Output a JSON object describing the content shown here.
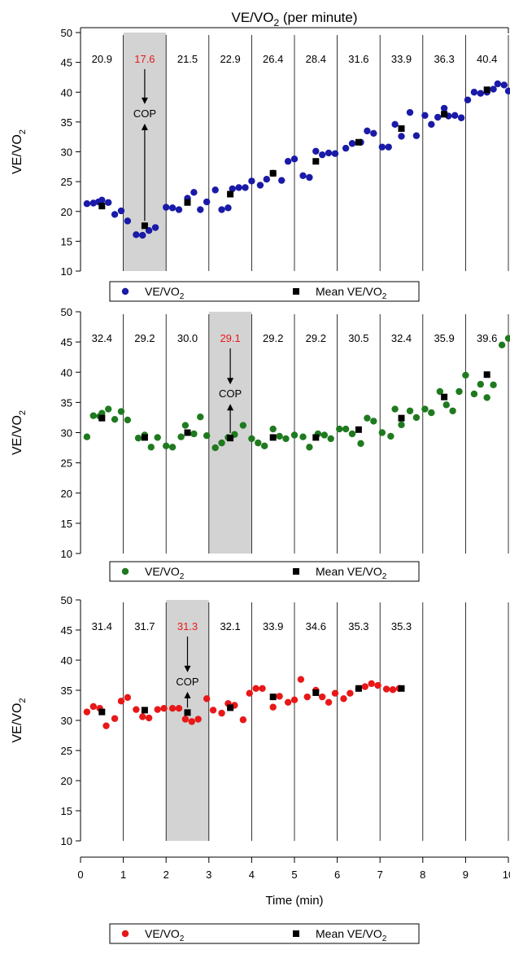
{
  "figure": {
    "title_main": "VE/VO",
    "title_sub": "2",
    "title_suffix": " (per minute)",
    "xlabel": "Time (min)",
    "cop_label": "COP"
  },
  "colors": {
    "blue": "#1a1aa8",
    "green": "#1f7a1f",
    "red": "#e81818",
    "mean": "#000000",
    "highlight": "#d3d3d3",
    "highlight_text": "#e81818"
  },
  "chart_data": [
    {
      "type": "scatter",
      "color": "blue",
      "ylabel_main": "VE/VO",
      "ylabel_sub": "2",
      "ylim": [
        10,
        50
      ],
      "yticks": [
        10,
        15,
        20,
        25,
        30,
        35,
        40,
        45,
        50
      ],
      "xlim": [
        0,
        10
      ],
      "minute_lines": [
        1,
        2,
        3,
        4,
        5,
        6,
        7,
        8,
        9,
        10
      ],
      "highlight_minute": [
        1,
        2
      ],
      "cop_minute": 1.5,
      "minute_means_text": [
        "20.9",
        "17.6",
        "21.5",
        "22.9",
        "26.4",
        "28.4",
        "31.6",
        "33.9",
        "36.3",
        "40.4"
      ],
      "highlight_index": 1,
      "legend": {
        "series": "VE/VO",
        "series_sub": "2",
        "mean": "Mean VE/VO",
        "mean_sub": "2"
      },
      "series": [
        {
          "name": "VE/VO2",
          "points": [
            [
              0.15,
              21.3
            ],
            [
              0.3,
              21.4
            ],
            [
              0.42,
              21.6
            ],
            [
              0.5,
              21.9
            ],
            [
              0.65,
              21.5
            ],
            [
              0.8,
              19.5
            ],
            [
              0.95,
              20.1
            ],
            [
              1.1,
              18.4
            ],
            [
              1.3,
              16.1
            ],
            [
              1.45,
              16.0
            ],
            [
              1.6,
              16.8
            ],
            [
              1.75,
              17.3
            ],
            [
              2.0,
              20.7
            ],
            [
              2.15,
              20.6
            ],
            [
              2.3,
              20.3
            ],
            [
              2.5,
              22.2
            ],
            [
              2.65,
              23.2
            ],
            [
              2.8,
              20.3
            ],
            [
              2.95,
              21.6
            ],
            [
              3.15,
              23.6
            ],
            [
              3.3,
              20.3
            ],
            [
              3.45,
              20.6
            ],
            [
              3.55,
              23.8
            ],
            [
              3.7,
              24.0
            ],
            [
              3.85,
              24.0
            ],
            [
              4.0,
              25.1
            ],
            [
              4.2,
              24.4
            ],
            [
              4.35,
              25.4
            ],
            [
              4.5,
              26.4
            ],
            [
              4.7,
              25.2
            ],
            [
              4.85,
              28.4
            ],
            [
              5.0,
              28.8
            ],
            [
              5.2,
              26.0
            ],
            [
              5.35,
              25.7
            ],
            [
              5.5,
              30.1
            ],
            [
              5.65,
              29.5
            ],
            [
              5.8,
              29.8
            ],
            [
              5.95,
              29.7
            ],
            [
              6.2,
              30.6
            ],
            [
              6.35,
              31.4
            ],
            [
              6.55,
              31.6
            ],
            [
              6.7,
              33.5
            ],
            [
              6.85,
              33.1
            ],
            [
              7.05,
              30.8
            ],
            [
              7.2,
              30.8
            ],
            [
              7.35,
              34.6
            ],
            [
              7.5,
              32.6
            ],
            [
              7.7,
              36.6
            ],
            [
              7.85,
              32.7
            ],
            [
              8.05,
              36.1
            ],
            [
              8.2,
              34.6
            ],
            [
              8.35,
              35.8
            ],
            [
              8.5,
              37.3
            ],
            [
              8.6,
              36.0
            ],
            [
              8.75,
              36.1
            ],
            [
              8.9,
              35.7
            ],
            [
              9.05,
              38.7
            ],
            [
              9.2,
              40.0
            ],
            [
              9.35,
              39.8
            ],
            [
              9.5,
              40.0
            ],
            [
              9.65,
              40.5
            ],
            [
              9.75,
              41.4
            ],
            [
              9.9,
              41.2
            ],
            [
              10.0,
              40.2
            ]
          ]
        },
        {
          "name": "Mean VE/VO2",
          "points": [
            [
              0.5,
              20.9
            ],
            [
              1.5,
              17.6
            ],
            [
              2.5,
              21.5
            ],
            [
              3.5,
              22.9
            ],
            [
              4.5,
              26.4
            ],
            [
              5.5,
              28.4
            ],
            [
              6.5,
              31.6
            ],
            [
              7.5,
              33.9
            ],
            [
              8.5,
              36.3
            ],
            [
              9.5,
              40.4
            ]
          ]
        }
      ]
    },
    {
      "type": "scatter",
      "color": "green",
      "ylabel_main": "VE/VO",
      "ylabel_sub": "2",
      "ylim": [
        10,
        50
      ],
      "yticks": [
        10,
        15,
        20,
        25,
        30,
        35,
        40,
        45,
        50
      ],
      "xlim": [
        0,
        10
      ],
      "minute_lines": [
        1,
        2,
        3,
        4,
        5,
        6,
        7,
        8,
        9,
        10
      ],
      "highlight_minute": [
        3,
        4
      ],
      "cop_minute": 3.5,
      "minute_means_text": [
        "32.4",
        "29.2",
        "30.0",
        "29.1",
        "29.2",
        "29.2",
        "30.5",
        "32.4",
        "35.9",
        "39.6"
      ],
      "highlight_index": 3,
      "legend": {
        "series": "VE/VO",
        "series_sub": "2",
        "mean": "Mean VE/VO",
        "mean_sub": "2"
      },
      "series": [
        {
          "name": "VE/VO2",
          "points": [
            [
              0.15,
              29.3
            ],
            [
              0.3,
              32.8
            ],
            [
              0.45,
              32.7
            ],
            [
              0.5,
              33.2
            ],
            [
              0.65,
              33.9
            ],
            [
              0.8,
              32.2
            ],
            [
              0.95,
              33.5
            ],
            [
              1.1,
              32.1
            ],
            [
              1.35,
              29.1
            ],
            [
              1.5,
              29.6
            ],
            [
              1.65,
              27.6
            ],
            [
              1.8,
              29.2
            ],
            [
              2.0,
              27.8
            ],
            [
              2.15,
              27.6
            ],
            [
              2.35,
              29.3
            ],
            [
              2.45,
              31.2
            ],
            [
              2.65,
              29.8
            ],
            [
              2.8,
              32.6
            ],
            [
              2.95,
              29.5
            ],
            [
              3.15,
              27.5
            ],
            [
              3.3,
              28.3
            ],
            [
              3.45,
              29.2
            ],
            [
              3.6,
              29.7
            ],
            [
              3.8,
              31.2
            ],
            [
              4.0,
              29.0
            ],
            [
              4.15,
              28.3
            ],
            [
              4.3,
              27.8
            ],
            [
              4.5,
              30.6
            ],
            [
              4.65,
              29.4
            ],
            [
              4.8,
              29.0
            ],
            [
              5.0,
              29.6
            ],
            [
              5.2,
              29.3
            ],
            [
              5.35,
              27.6
            ],
            [
              5.55,
              29.8
            ],
            [
              5.7,
              29.6
            ],
            [
              5.85,
              29.0
            ],
            [
              6.05,
              30.6
            ],
            [
              6.2,
              30.6
            ],
            [
              6.35,
              29.8
            ],
            [
              6.55,
              28.2
            ],
            [
              6.7,
              32.4
            ],
            [
              6.85,
              31.9
            ],
            [
              7.05,
              30.0
            ],
            [
              7.25,
              29.4
            ],
            [
              7.35,
              33.9
            ],
            [
              7.5,
              31.3
            ],
            [
              7.7,
              33.6
            ],
            [
              7.85,
              32.5
            ],
            [
              8.05,
              33.9
            ],
            [
              8.2,
              33.3
            ],
            [
              8.4,
              36.8
            ],
            [
              8.55,
              34.6
            ],
            [
              8.7,
              33.6
            ],
            [
              8.85,
              36.8
            ],
            [
              9.0,
              39.5
            ],
            [
              9.2,
              36.4
            ],
            [
              9.35,
              38.0
            ],
            [
              9.5,
              35.8
            ],
            [
              9.65,
              37.9
            ],
            [
              9.85,
              44.5
            ],
            [
              10.0,
              45.6
            ]
          ]
        },
        {
          "name": "Mean VE/VO2",
          "points": [
            [
              0.5,
              32.4
            ],
            [
              1.5,
              29.2
            ],
            [
              2.5,
              30.0
            ],
            [
              3.5,
              29.1
            ],
            [
              4.5,
              29.2
            ],
            [
              5.5,
              29.2
            ],
            [
              6.5,
              30.5
            ],
            [
              7.5,
              32.4
            ],
            [
              8.5,
              35.9
            ],
            [
              9.5,
              39.6
            ]
          ]
        }
      ]
    },
    {
      "type": "scatter",
      "color": "red",
      "ylabel_main": "VE/VO",
      "ylabel_sub": "2",
      "ylim": [
        10,
        50
      ],
      "yticks": [
        10,
        15,
        20,
        25,
        30,
        35,
        40,
        45,
        50
      ],
      "xlim": [
        0,
        10
      ],
      "xticks": [
        0,
        1,
        2,
        3,
        4,
        5,
        6,
        7,
        8,
        9,
        10
      ],
      "minute_lines": [
        1,
        2,
        3,
        4,
        5,
        6,
        7,
        8,
        9,
        10
      ],
      "highlight_minute": [
        2,
        3
      ],
      "cop_minute": 2.5,
      "minute_means_text": [
        "31.4",
        "31.7",
        "31.3",
        "32.1",
        "33.9",
        "34.6",
        "35.3",
        "35.3"
      ],
      "highlight_index": 2,
      "legend": {
        "series": "VE/VO",
        "series_sub": "2",
        "mean": "Mean VE/VO",
        "mean_sub": "2"
      },
      "series": [
        {
          "name": "VE/VO2",
          "points": [
            [
              0.15,
              31.4
            ],
            [
              0.3,
              32.3
            ],
            [
              0.45,
              32.0
            ],
            [
              0.6,
              29.1
            ],
            [
              0.8,
              30.3
            ],
            [
              0.95,
              33.2
            ],
            [
              1.1,
              33.8
            ],
            [
              1.3,
              31.8
            ],
            [
              1.45,
              30.6
            ],
            [
              1.6,
              30.4
            ],
            [
              1.8,
              31.8
            ],
            [
              1.95,
              32.0
            ],
            [
              2.15,
              32.0
            ],
            [
              2.3,
              32.0
            ],
            [
              2.45,
              30.2
            ],
            [
              2.6,
              29.8
            ],
            [
              2.75,
              30.2
            ],
            [
              2.95,
              33.6
            ],
            [
              3.1,
              31.7
            ],
            [
              3.3,
              31.2
            ],
            [
              3.45,
              32.8
            ],
            [
              3.6,
              32.5
            ],
            [
              3.8,
              30.1
            ],
            [
              3.95,
              34.5
            ],
            [
              4.1,
              35.3
            ],
            [
              4.25,
              35.3
            ],
            [
              4.5,
              32.2
            ],
            [
              4.65,
              34.0
            ],
            [
              4.85,
              33.0
            ],
            [
              5.0,
              33.4
            ],
            [
              5.15,
              36.8
            ],
            [
              5.3,
              33.9
            ],
            [
              5.5,
              35.0
            ],
            [
              5.65,
              33.9
            ],
            [
              5.8,
              33.0
            ],
            [
              5.95,
              34.5
            ],
            [
              6.15,
              33.6
            ],
            [
              6.3,
              34.5
            ],
            [
              6.5,
              35.3
            ],
            [
              6.65,
              35.6
            ],
            [
              6.8,
              36.1
            ],
            [
              6.95,
              35.8
            ],
            [
              7.15,
              35.2
            ],
            [
              7.3,
              35.1
            ],
            [
              7.45,
              35.3
            ]
          ]
        },
        {
          "name": "Mean VE/VO2",
          "points": [
            [
              0.5,
              31.4
            ],
            [
              1.5,
              31.7
            ],
            [
              2.5,
              31.3
            ],
            [
              3.5,
              32.1
            ],
            [
              4.5,
              33.9
            ],
            [
              5.5,
              34.6
            ],
            [
              6.5,
              35.3
            ],
            [
              7.5,
              35.3
            ]
          ]
        }
      ]
    }
  ]
}
